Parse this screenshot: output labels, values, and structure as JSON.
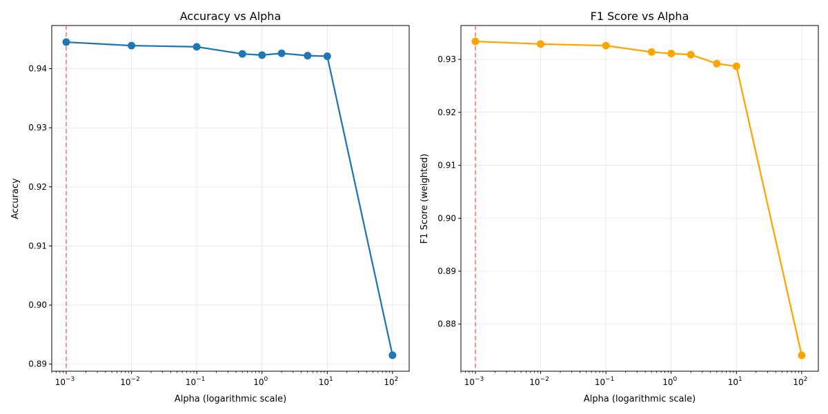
{
  "colors": {
    "accuracy_line": "#1f77b4",
    "f1_line": "#ffa500",
    "reference_line": "#ff6b6b",
    "grid": "#e6e6e6",
    "axes": "#000000"
  },
  "chart_data": [
    {
      "type": "line",
      "title": "Accuracy vs Alpha",
      "xlabel": "Alpha (logarithmic scale)",
      "ylabel": "Accuracy",
      "xscale": "log",
      "grid": true,
      "x": [
        0.001,
        0.01,
        0.1,
        0.5,
        1,
        2,
        5,
        10,
        100
      ],
      "series": [
        {
          "values": [
            0.9445,
            0.9439,
            0.9437,
            0.9425,
            0.9423,
            0.9426,
            0.9422,
            0.9421,
            0.8915
          ]
        }
      ],
      "xlim": [
        0.0006,
        180
      ],
      "ylim": [
        0.8888,
        0.9473
      ],
      "yticks": [
        "0.89",
        "0.90",
        "0.91",
        "0.92",
        "0.93",
        "0.94"
      ],
      "xticks": [
        {
          "base": "10",
          "exp": "−3"
        },
        {
          "base": "10",
          "exp": "−2"
        },
        {
          "base": "10",
          "exp": "−1"
        },
        {
          "base": "10",
          "exp": "0"
        },
        {
          "base": "10",
          "exp": "1"
        },
        {
          "base": "10",
          "exp": "2"
        }
      ],
      "reference_x": 0.001,
      "line_color": "#1f77b4"
    },
    {
      "type": "line",
      "title": "F1 Score vs Alpha",
      "xlabel": "Alpha (logarithmic scale)",
      "ylabel": "F1 Score (weighted)",
      "xscale": "log",
      "grid": true,
      "x": [
        0.001,
        0.01,
        0.1,
        0.5,
        1,
        2,
        5,
        10,
        100
      ],
      "series": [
        {
          "values": [
            0.9334,
            0.9329,
            0.9326,
            0.9314,
            0.9311,
            0.9309,
            0.9292,
            0.9287,
            0.8741
          ]
        }
      ],
      "xlim": [
        0.0006,
        180
      ],
      "ylim": [
        0.8711,
        0.9364
      ],
      "yticks": [
        "0.88",
        "0.89",
        "0.90",
        "0.91",
        "0.92",
        "0.93"
      ],
      "xticks": [
        {
          "base": "10",
          "exp": "−3"
        },
        {
          "base": "10",
          "exp": "−2"
        },
        {
          "base": "10",
          "exp": "−1"
        },
        {
          "base": "10",
          "exp": "0"
        },
        {
          "base": "10",
          "exp": "1"
        },
        {
          "base": "10",
          "exp": "2"
        }
      ],
      "reference_x": 0.001,
      "line_color": "#ffa500"
    }
  ]
}
